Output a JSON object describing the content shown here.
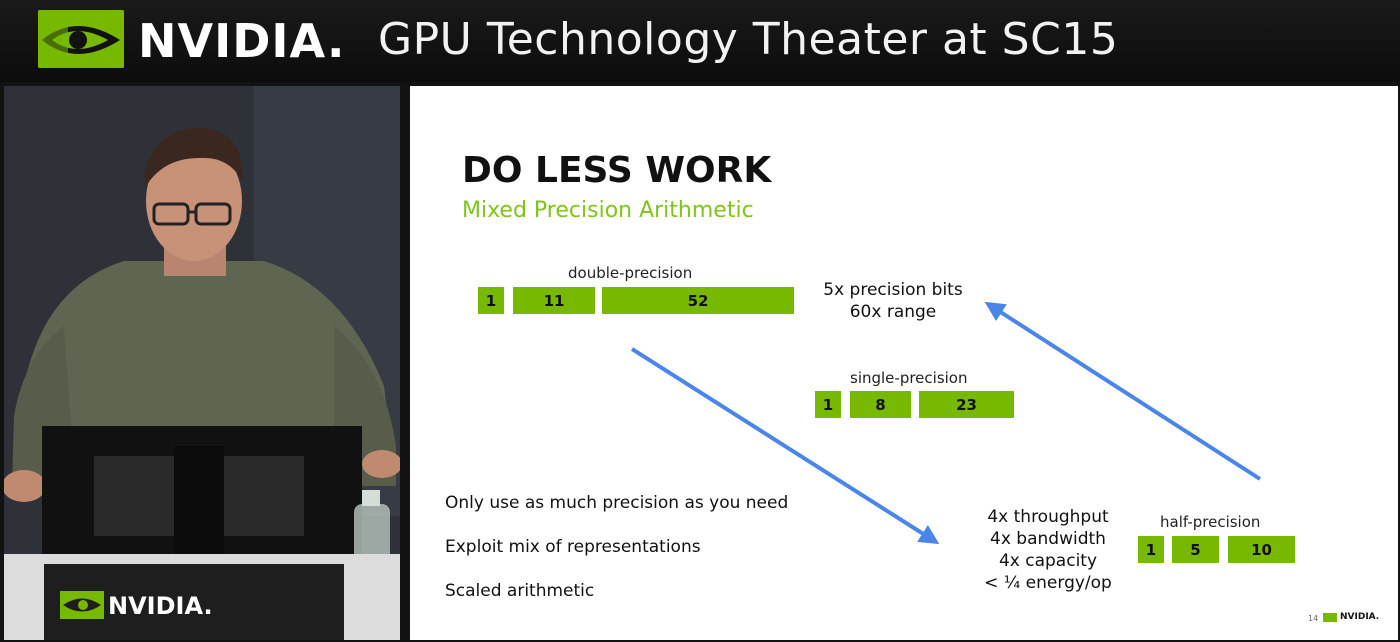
{
  "header": {
    "brand": "NVIDIA.",
    "title": "GPU Technology Theater at SC15"
  },
  "podium": {
    "brand": "NVIDIA."
  },
  "slide": {
    "title": "DO LESS WORK",
    "subtitle": "Mixed Precision Arithmetic",
    "formats": {
      "double": {
        "label": "double-precision",
        "fields": [
          "1",
          "11",
          "52"
        ]
      },
      "single": {
        "label": "single-precision",
        "fields": [
          "1",
          "8",
          "23"
        ]
      },
      "half": {
        "label": "half-precision",
        "fields": [
          "1",
          "5",
          "10"
        ]
      }
    },
    "notes": {
      "top": [
        "5x precision bits",
        "60x range"
      ],
      "bottom": [
        "4x throughput",
        "4x bandwidth",
        "4x capacity",
        "< ¼ energy/op"
      ]
    },
    "bullets": [
      "Only use as much precision as you need",
      "Exploit mix of representations",
      "Scaled arithmetic"
    ],
    "page_number": "14",
    "footer_brand": "NVIDIA."
  },
  "colors": {
    "accent": "#76b900",
    "arrow": "#4a86e8",
    "subtitle": "#7fc31c"
  }
}
